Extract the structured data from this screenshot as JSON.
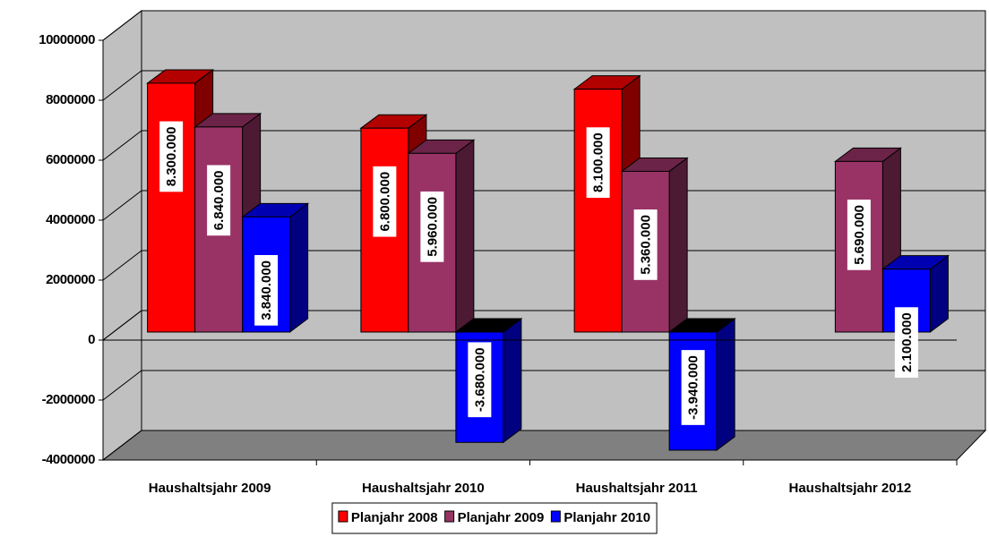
{
  "chart_data": {
    "type": "bar3d",
    "categories": [
      "Haushaltsjahr 2009",
      "Haushaltsjahr 2010",
      "Haushaltsjahr 2011",
      "Haushaltsjahr 2012"
    ],
    "series": [
      {
        "name": "Planjahr 2008",
        "color": "#ff0000",
        "values": [
          8300000,
          6800000,
          8100000,
          null
        ],
        "value_labels": [
          "8.300.000",
          "6.800.000",
          "8.100.000",
          null
        ]
      },
      {
        "name": "Planjahr 2009",
        "color": "#993366",
        "values": [
          6840000,
          5960000,
          5360000,
          5690000
        ],
        "value_labels": [
          "6.840.000",
          "5.960.000",
          "5.360.000",
          "5.690.000"
        ]
      },
      {
        "name": "Planjahr 2010",
        "color": "#0000ff",
        "values": [
          3840000,
          -3680000,
          -3940000,
          2100000
        ],
        "value_labels": [
          "3.840.000",
          "-3.680.000",
          "-3.940.000",
          "2.100.000"
        ]
      }
    ],
    "ylim": [
      -4000000,
      10000000
    ],
    "yticks": [
      -4000000,
      -2000000,
      0,
      2000000,
      4000000,
      6000000,
      8000000,
      10000000
    ],
    "grid": true,
    "legend": "bottom"
  }
}
